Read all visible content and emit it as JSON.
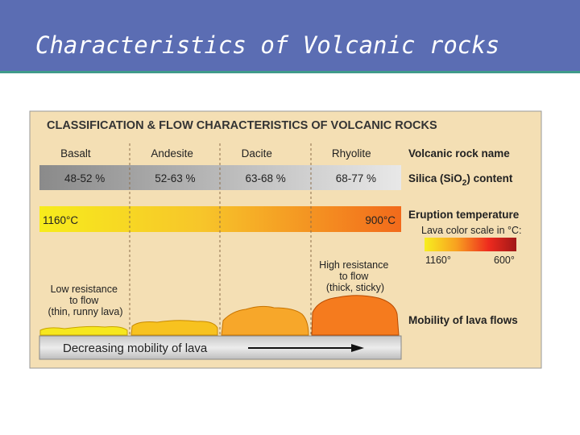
{
  "header": {
    "title": "Characteristics of Volcanic rocks"
  },
  "figure": {
    "title": "CLASSIFICATION & FLOW CHARACTERISTICS OF VOLCANIC ROCKS",
    "columns": [
      {
        "name": "Basalt",
        "silica": "48-52 %"
      },
      {
        "name": "Andesite",
        "silica": "52-63 %"
      },
      {
        "name": "Dacite",
        "silica": "63-68 %"
      },
      {
        "name": "Rhyolite",
        "silica": "68-77 %"
      }
    ],
    "temperature_hot": "1160°C",
    "temperature_cool": "900°C",
    "row_labels": {
      "rock_name": "Volcanic rock name",
      "silica": [
        "Silica (SiO",
        "2",
        ") content"
      ],
      "temperature": "Eruption temperature",
      "mobility": "Mobility of lava flows"
    },
    "scale": {
      "title": "Lava color scale in °C:",
      "hot": "1160°",
      "cool": "600°"
    },
    "low_resistance": [
      "Low resistance",
      "to flow",
      "(thin, runny lava)"
    ],
    "high_resistance": [
      "High resistance",
      "to flow",
      "(thick, sticky)"
    ],
    "bottom_bar": "Decreasing mobility of lava"
  }
}
